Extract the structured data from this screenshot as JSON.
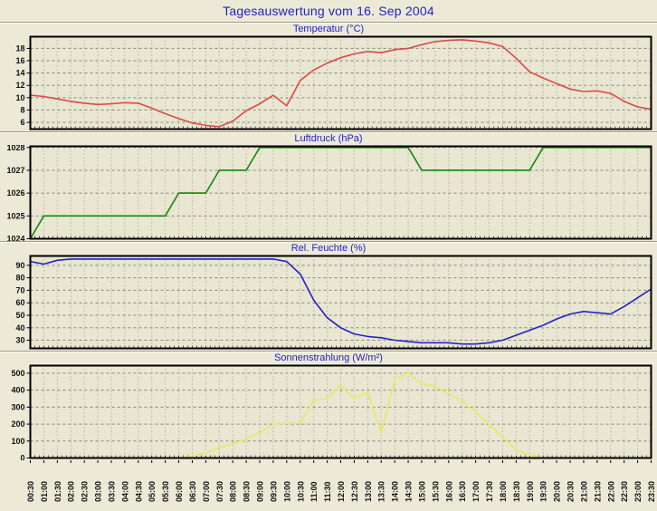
{
  "page": {
    "title": "Tagesauswertung vom 16. Sep 2004",
    "background_color": "#ECE9D7",
    "plot_background_color": "#E9E6D1",
    "title_color": "#2222C4",
    "grid_color": "#98988A",
    "axis_color": "#000000"
  },
  "chart_data": {
    "type": "line",
    "title": "Tagesauswertung vom 16. Sep 2004",
    "grid": true,
    "legend_position": "none",
    "x_tick_rotation": 90,
    "categories": [
      "00:30",
      "01:00",
      "01:30",
      "02:00",
      "02:30",
      "03:00",
      "03:30",
      "04:00",
      "04:30",
      "05:00",
      "05:30",
      "06:00",
      "06:30",
      "07:00",
      "07:30",
      "08:00",
      "08:30",
      "09:00",
      "09:30",
      "10:00",
      "10:30",
      "11:00",
      "11:30",
      "12:00",
      "12:30",
      "13:00",
      "13:30",
      "14:00",
      "14:30",
      "15:00",
      "15:30",
      "16:00",
      "16:30",
      "17:00",
      "17:30",
      "18:00",
      "18:30",
      "19:00",
      "19:30",
      "20:00",
      "20:30",
      "21:00",
      "21:30",
      "22:00",
      "22:30",
      "23:00",
      "23:30"
    ],
    "series": [
      {
        "name": "Temperatur (°C)",
        "color": "#D94A4A",
        "ylim": [
          4.9,
          19.9
        ],
        "yticks": [
          6,
          8,
          10,
          12,
          14,
          16,
          18
        ],
        "values": [
          10.4,
          10.2,
          9.8,
          9.4,
          9.1,
          8.9,
          9.0,
          9.2,
          9.1,
          8.3,
          7.4,
          6.6,
          5.9,
          5.5,
          5.3,
          6.2,
          7.9,
          9.0,
          10.4,
          8.7,
          12.8,
          14.5,
          15.6,
          16.5,
          17.1,
          17.5,
          17.3,
          17.8,
          18.0,
          18.6,
          19.1,
          19.3,
          19.4,
          19.2,
          18.9,
          18.3,
          16.4,
          14.2,
          13.2,
          12.3,
          11.4,
          11.0,
          11.1,
          10.7,
          9.4,
          8.5,
          8.1
        ]
      },
      {
        "name": "Luftdruck (hPa)",
        "color": "#118811",
        "ylim": [
          1024,
          1028.05
        ],
        "yticks": [
          1024,
          1025,
          1026,
          1027,
          1028
        ],
        "values": [
          1024,
          1025,
          1025,
          1025,
          1025,
          1025,
          1025,
          1025,
          1025,
          1025,
          1025,
          1026,
          1026,
          1026,
          1027,
          1027,
          1027,
          1028,
          1028,
          1028,
          1028,
          1028,
          1028,
          1028,
          1028,
          1028,
          1028,
          1028,
          1028,
          1027,
          1027,
          1027,
          1027,
          1027,
          1027,
          1027,
          1027,
          1027,
          1028,
          1028,
          1028,
          1028,
          1028,
          1028,
          1028,
          1028,
          1028
        ]
      },
      {
        "name": "Rel. Feuchte (%)",
        "color": "#2323C8",
        "ylim": [
          23.5,
          97.5
        ],
        "yticks": [
          30,
          40,
          50,
          60,
          70,
          80,
          90
        ],
        "values": [
          93,
          91,
          94,
          95,
          95,
          95,
          95,
          95,
          95,
          95,
          95,
          95,
          95,
          95,
          95,
          95,
          95,
          95,
          95,
          93,
          83,
          62,
          48,
          40,
          35,
          33,
          32,
          30,
          29,
          28,
          28,
          28,
          27,
          27,
          28,
          30,
          34,
          38,
          42,
          47,
          51,
          53,
          52,
          51,
          57,
          64,
          71
        ]
      },
      {
        "name": "Sonnenstrahlung (W/m²)",
        "color": "#E8E868",
        "ylim": [
          0,
          545
        ],
        "yticks": [
          0,
          100,
          200,
          300,
          400,
          500
        ],
        "values": [
          0,
          0,
          0,
          0,
          0,
          0,
          0,
          0,
          0,
          0,
          0,
          0,
          10,
          30,
          60,
          85,
          110,
          150,
          200,
          205,
          205,
          340,
          350,
          430,
          350,
          390,
          150,
          465,
          500,
          440,
          420,
          380,
          335,
          270,
          200,
          120,
          48,
          15,
          0,
          0,
          0,
          0,
          0,
          0,
          0,
          0,
          0
        ]
      }
    ]
  }
}
